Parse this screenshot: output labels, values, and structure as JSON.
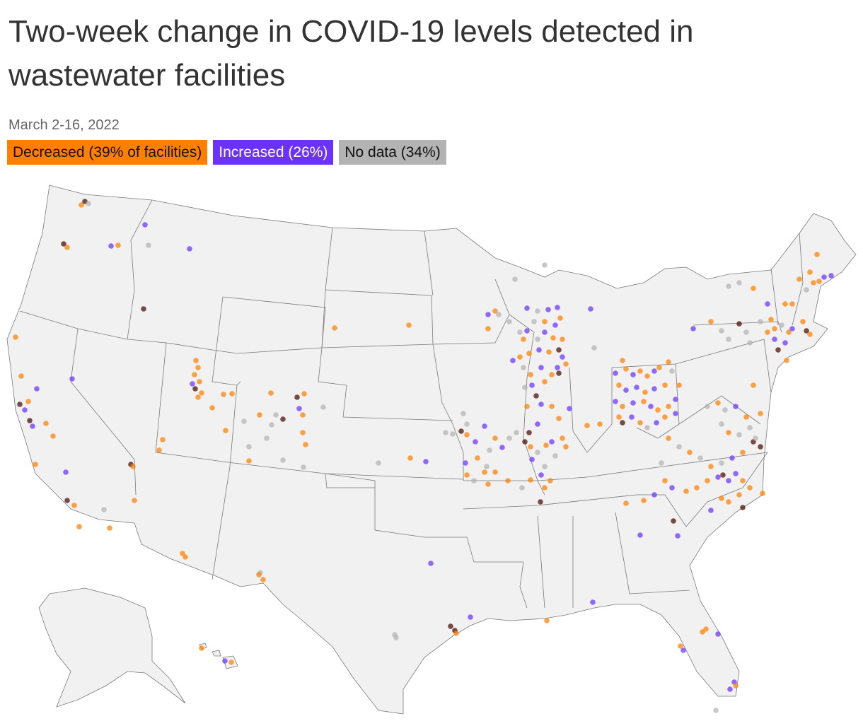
{
  "title": "Two-week change in COVID-19 levels detected in wastewater facilities",
  "subtitle": "March 2-16, 2022",
  "legend": [
    {
      "label": "Decreased (39% of facilities)",
      "color": "#ff7f00",
      "text_color": "#111111"
    },
    {
      "label": "Increased (26%)",
      "color": "#6b32ff",
      "text_color": "#ffffff"
    },
    {
      "label": "No data (34%)",
      "color": "#b3b3b3",
      "text_color": "#111111"
    }
  ],
  "colors": {
    "decreased": "#ff7f00",
    "increased": "#6b32ff",
    "no_data": "#b3b3b3",
    "dark": "#4a0a00",
    "land": "#f1f1f1",
    "border": "#7a7a7a"
  }
}
